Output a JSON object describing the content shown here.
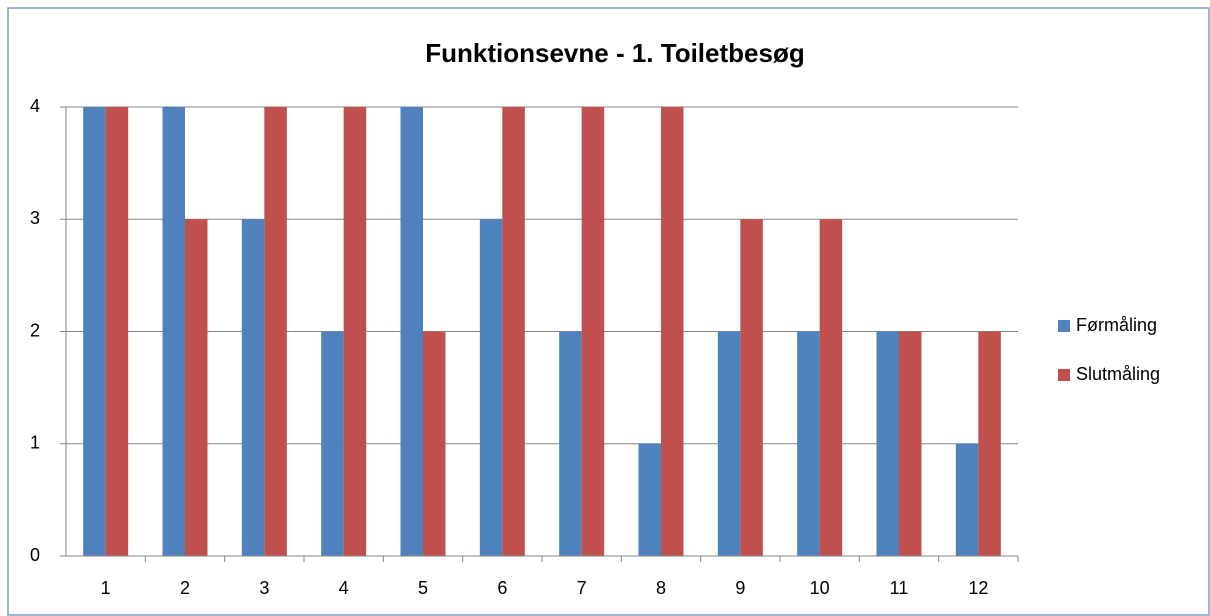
{
  "chart_data": {
    "type": "bar",
    "title": "Funktionsevne - 1. Toiletbesøg",
    "categories": [
      "1",
      "2",
      "3",
      "4",
      "5",
      "6",
      "7",
      "8",
      "9",
      "10",
      "11",
      "12"
    ],
    "series": [
      {
        "name": "Førmåling",
        "color": "#4f81bd",
        "values": [
          4,
          4,
          3,
          2,
          4,
          3,
          2,
          1,
          2,
          2,
          2,
          1
        ]
      },
      {
        "name": "Slutmåling",
        "color": "#c0504d",
        "values": [
          4,
          3,
          4,
          4,
          2,
          4,
          4,
          4,
          3,
          3,
          2,
          2
        ]
      }
    ],
    "ylim": [
      0,
      4
    ],
    "yticks": [
      0,
      1,
      2,
      3,
      4
    ],
    "grid": true,
    "legend": "right"
  }
}
